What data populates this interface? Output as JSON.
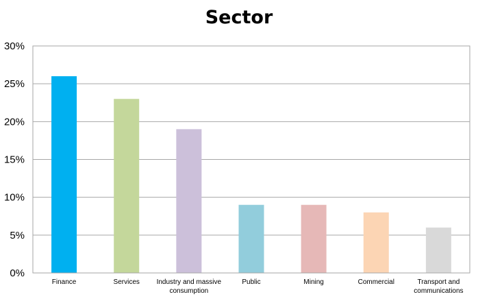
{
  "chart_data": {
    "type": "bar",
    "title": "Sector",
    "xlabel": "",
    "ylabel": "",
    "categories": [
      "Finance",
      "Services",
      "Industry and massive consumption",
      "Public",
      "Mining",
      "Commercial",
      "Transport and communications"
    ],
    "category_lines": [
      [
        "Finance"
      ],
      [
        "Services"
      ],
      [
        "Industry and massive",
        "consumption"
      ],
      [
        "Public"
      ],
      [
        "Mining"
      ],
      [
        "Commercial"
      ],
      [
        "Transport and",
        "communications"
      ]
    ],
    "values": [
      26,
      23,
      19,
      9,
      9,
      8,
      6
    ],
    "colors": [
      "#00b0f0",
      "#c4d79b",
      "#ccc0da",
      "#92cddc",
      "#e6b8b7",
      "#fcd5b4",
      "#d9d9d9"
    ],
    "ylim": [
      0,
      30
    ],
    "yticks": [
      0,
      5,
      10,
      15,
      20,
      25,
      30
    ],
    "ytick_format": "percent",
    "grid": true,
    "legend": "none"
  }
}
